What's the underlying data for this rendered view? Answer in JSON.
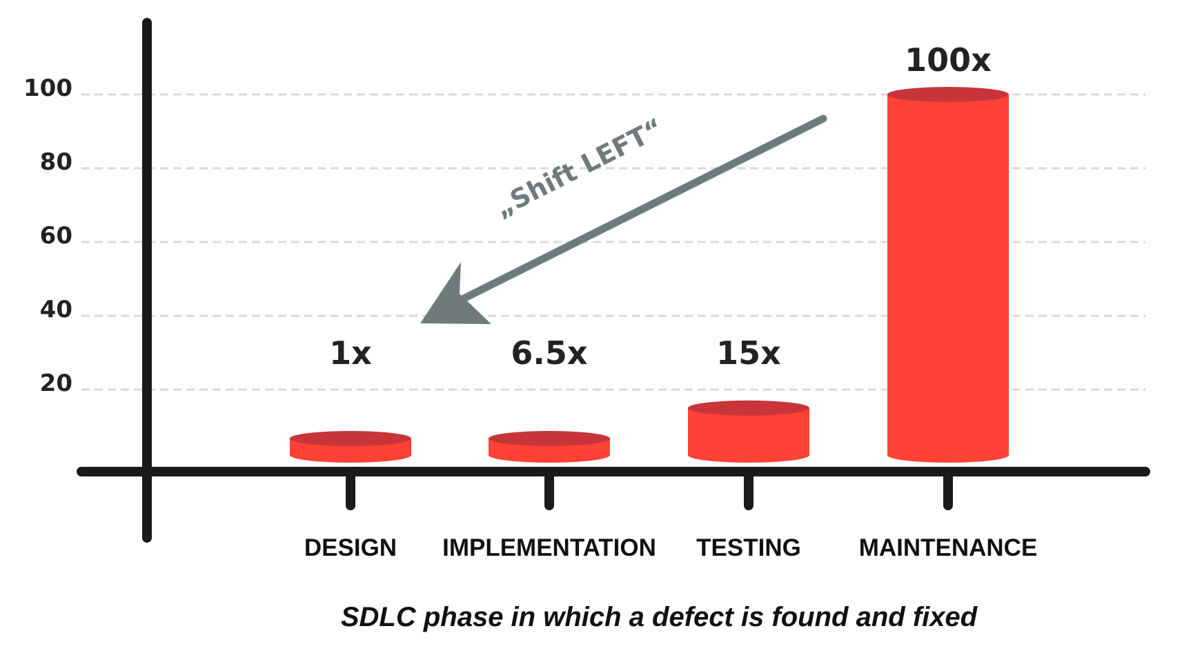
{
  "chart_data": {
    "type": "bar",
    "categories": [
      "DESIGN",
      "IMPLEMENTATION",
      "TESTING",
      "MAINTENANCE"
    ],
    "values": [
      1,
      6.5,
      15,
      100
    ],
    "value_labels": [
      "1x",
      "6.5x",
      "15x",
      "100x"
    ],
    "yticks": [
      20,
      40,
      60,
      80,
      100
    ],
    "ylim": [
      0,
      100
    ],
    "grid": "horizontal dashed",
    "xlabel": "SDLC phase in which a defect is found and fixed",
    "ylabel": "",
    "annotation": "„Shift LEFT“",
    "colors": {
      "bar": "#ff4136",
      "bar_top": "#c7353a",
      "axis": "#1a1a1a",
      "grid": "#d9d9d9",
      "arrow": "#6f7b7a"
    }
  }
}
